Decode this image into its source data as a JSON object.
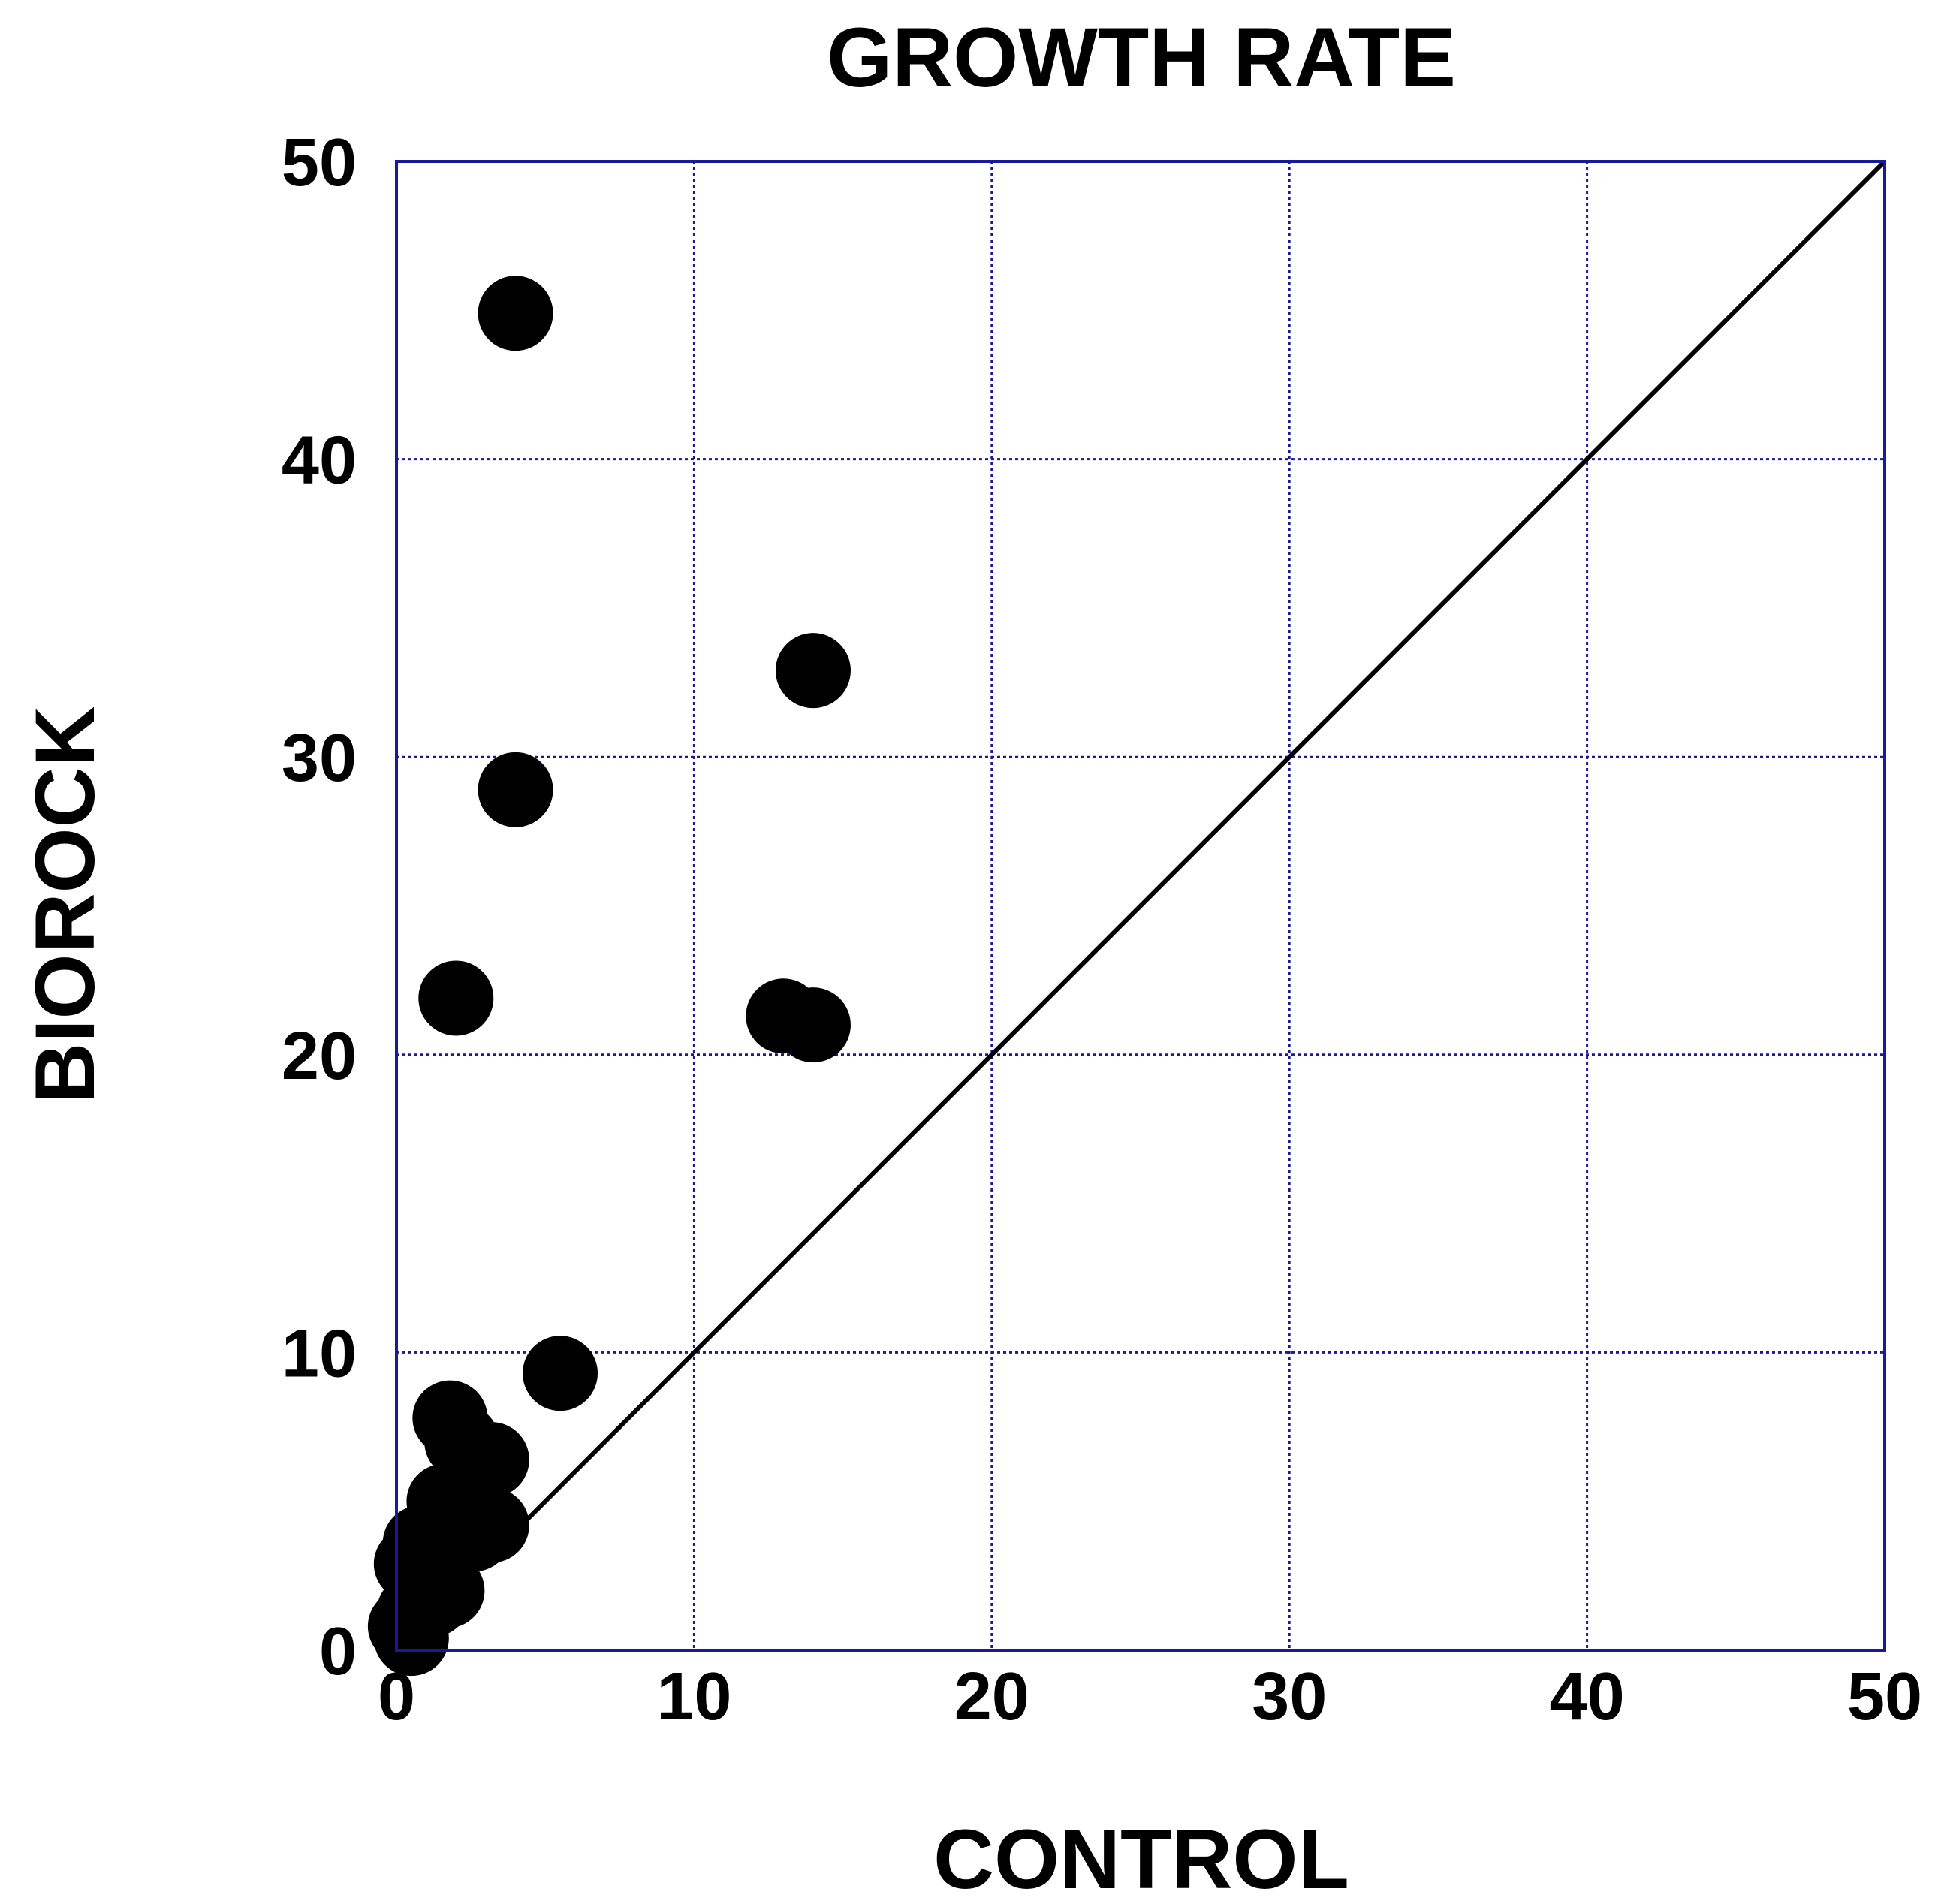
{
  "chart_data": {
    "type": "scatter",
    "title": "GROWTH RATE",
    "xlabel": "CONTROL",
    "ylabel": "BIOROCK",
    "xlim": [
      0,
      50
    ],
    "ylim": [
      0,
      50
    ],
    "xticks": [
      "0",
      "10",
      "20",
      "30",
      "40",
      "50"
    ],
    "yticks": [
      "0",
      "10",
      "20",
      "30",
      "40",
      "50"
    ],
    "grid": true,
    "reference_line": {
      "x": [
        0,
        50
      ],
      "y": [
        0,
        50
      ]
    },
    "colors": {
      "frame": "#1a1a99",
      "grid": "#1a1a99",
      "points": "#000000",
      "line": "#000000"
    },
    "points": [
      {
        "x": 4.0,
        "y": 44.9
      },
      {
        "x": 14.0,
        "y": 32.9
      },
      {
        "x": 4.0,
        "y": 28.9
      },
      {
        "x": 2.0,
        "y": 21.9
      },
      {
        "x": 13.0,
        "y": 21.3
      },
      {
        "x": 14.0,
        "y": 21.0
      },
      {
        "x": 5.5,
        "y": 9.3
      },
      {
        "x": 1.8,
        "y": 7.8
      },
      {
        "x": 2.2,
        "y": 7.0
      },
      {
        "x": 3.2,
        "y": 6.4
      },
      {
        "x": 2.5,
        "y": 5.8
      },
      {
        "x": 1.6,
        "y": 5.0
      },
      {
        "x": 2.0,
        "y": 4.6
      },
      {
        "x": 3.2,
        "y": 4.2
      },
      {
        "x": 2.6,
        "y": 3.9
      },
      {
        "x": 0.8,
        "y": 3.6
      },
      {
        "x": 1.5,
        "y": 3.3
      },
      {
        "x": 0.5,
        "y": 2.9
      },
      {
        "x": 1.1,
        "y": 2.5
      },
      {
        "x": 1.7,
        "y": 2.0
      },
      {
        "x": 1.2,
        "y": 1.7
      },
      {
        "x": 0.6,
        "y": 1.3
      },
      {
        "x": 0.3,
        "y": 0.8
      },
      {
        "x": 0.5,
        "y": 0.4
      }
    ]
  }
}
